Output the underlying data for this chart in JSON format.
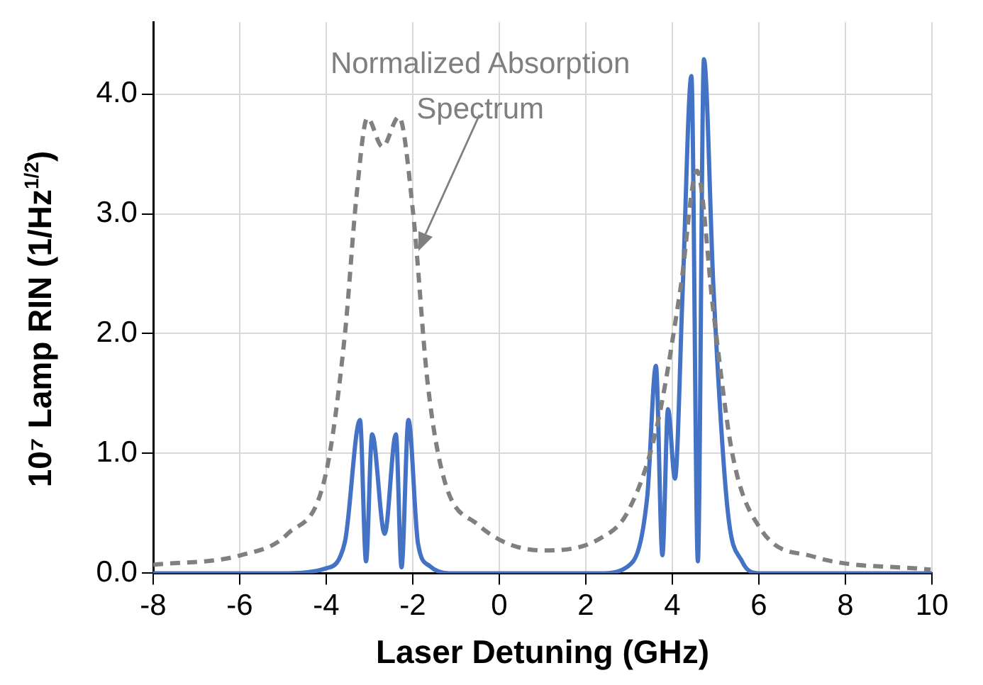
{
  "chart_data": {
    "type": "line",
    "xlabel": "Laser Detuning (GHz)",
    "ylabel": "10⁷ Lamp RIN (1/Hz$^{1/2}$)",
    "xlim": [
      -8,
      10
    ],
    "xticks": [
      -8,
      -6,
      -4,
      -2,
      0,
      2,
      4,
      6,
      8,
      10
    ],
    "ylim": [
      0,
      4.6
    ],
    "yticks": [
      {
        "value": 0,
        "label": "0.0"
      },
      {
        "value": 1,
        "label": "1.0"
      },
      {
        "value": 2,
        "label": "2.0"
      },
      {
        "value": 3,
        "label": "3.0"
      },
      {
        "value": 4,
        "label": "4.0"
      }
    ],
    "grid": true,
    "legend": false,
    "marker": "none",
    "annotations": [
      "Normalized Absorption Spectrum"
    ],
    "series": [
      {
        "color": "#808080",
        "line_style": "dashed",
        "x": [
          -8,
          -5.98,
          -4.89,
          -4.01,
          -3.57,
          -3.3,
          -3.05,
          -2.7,
          -2.32,
          -1.99,
          -1.66,
          -1.28,
          -0.51,
          1.02,
          2.33,
          2.98,
          3.64,
          4.19,
          4.57,
          4.95,
          5.39,
          6.04,
          7.25,
          9.97
        ],
        "values": [
          0.07,
          0.15,
          0.33,
          0.83,
          1.99,
          3.15,
          3.8,
          3.56,
          3.81,
          3.0,
          1.6,
          0.79,
          0.41,
          0.19,
          0.29,
          0.52,
          1.22,
          2.38,
          3.36,
          2.18,
          0.99,
          0.37,
          0.14,
          0.03
        ]
      },
      {
        "color": "#4472c4",
        "line_style": "solid",
        "x": [
          -8,
          -4.89,
          -4.01,
          -3.57,
          -3.22,
          -3.08,
          -2.94,
          -2.65,
          -2.39,
          -2.26,
          -2.1,
          -1.88,
          -1.61,
          -1.17,
          2.33,
          2.98,
          3.42,
          3.62,
          3.77,
          3.9,
          4.06,
          4.24,
          4.44,
          4.59,
          4.73,
          4.95,
          5.28,
          5.61,
          6.0,
          10
        ],
        "values": [
          0,
          0,
          0.04,
          0.26,
          1.28,
          0.1,
          1.16,
          0.33,
          1.16,
          0.05,
          1.28,
          0.25,
          0.06,
          0,
          0,
          0.06,
          0.64,
          1.73,
          0.15,
          1.37,
          0.79,
          2.38,
          4.15,
          0.1,
          4.29,
          2.38,
          0.52,
          0.1,
          0,
          0
        ]
      }
    ]
  }
}
